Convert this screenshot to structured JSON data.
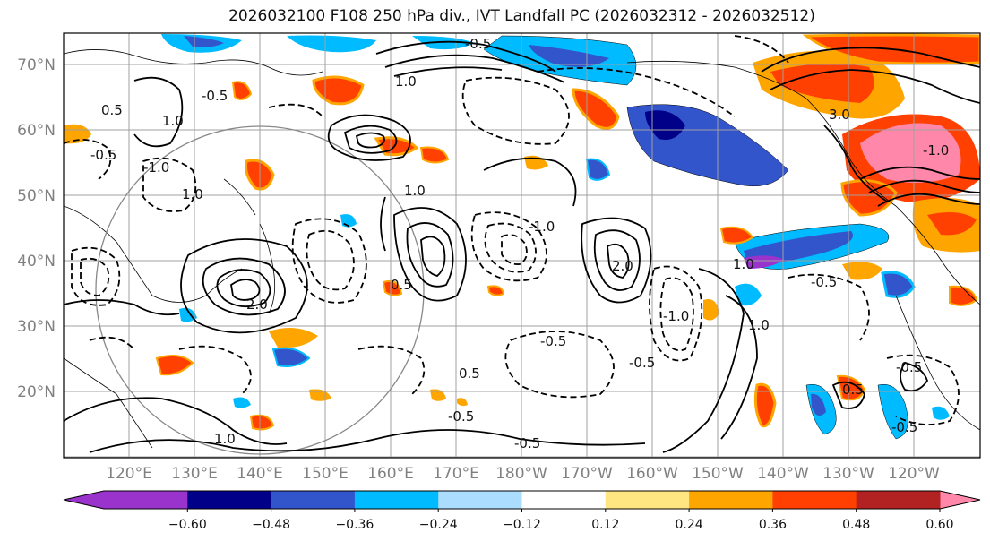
{
  "title": "2026032100 F108 250 hPa div., IVT Landfall PC (2026032312 - 2026032512)",
  "lat_labels": [
    "70°N",
    "60°N",
    "50°N",
    "40°N",
    "30°N",
    "20°N"
  ],
  "lon_labels": [
    "120°E",
    "130°E",
    "140°E",
    "150°E",
    "160°E",
    "170°E",
    "180°W",
    "170°W",
    "160°W",
    "150°W",
    "140°W",
    "130°W",
    "120°W"
  ],
  "colorbar": {
    "ticks": [
      "−0.60",
      "−0.48",
      "−0.36",
      "−0.24",
      "−0.12",
      "0.12",
      "0.24",
      "0.36",
      "0.48",
      "0.60"
    ],
    "colors": [
      "#9933cc",
      "#000088",
      "#3355cc",
      "#00bbff",
      "#aaddff",
      "#ffffff",
      "#ffe680",
      "#ffa500",
      "#ff4000",
      "#b22222",
      "#ff88aa"
    ]
  },
  "contour_labels": [
    "1.0",
    "-0.5",
    "1.0",
    "-1.0",
    "0.5",
    "-0.5",
    "1.0",
    "-0.5",
    "1.0",
    "-1.0",
    "0.5",
    "-0.5",
    "2.0",
    "-0.5",
    "1.0",
    "-0.5",
    "-0.5",
    "0.5",
    "1.0",
    "-1.0",
    "-0.5",
    "1.0",
    "-0.5",
    "0.5",
    "-0.5",
    "3.0",
    "-1.0",
    "2.0"
  ]
}
